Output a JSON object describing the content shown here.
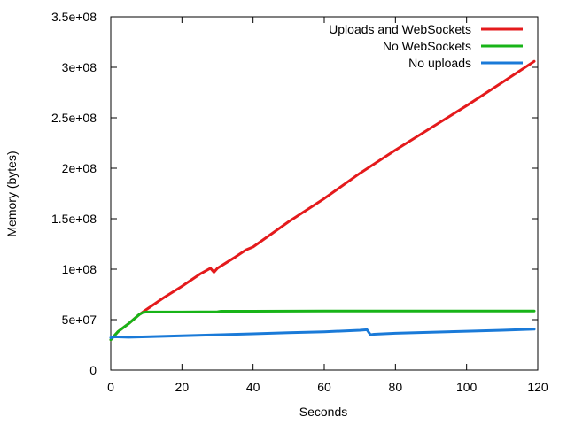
{
  "chart_data": {
    "type": "line",
    "title": "",
    "xlabel": "Seconds",
    "ylabel": "Memory (bytes)",
    "xlim": [
      0,
      120
    ],
    "ylim": [
      0,
      350000000
    ],
    "x_ticks": [
      0,
      20,
      40,
      60,
      80,
      100,
      120
    ],
    "x_tick_labels": [
      "0",
      "20",
      "40",
      "60",
      "80",
      "100",
      "120"
    ],
    "y_ticks": [
      0,
      50000000,
      100000000,
      150000000,
      200000000,
      250000000,
      300000000,
      350000000
    ],
    "y_tick_labels": [
      "0",
      "5e+07",
      "1e+08",
      "1.5e+08",
      "2e+08",
      "2.5e+08",
      "3e+08",
      "3.5e+08"
    ],
    "grid": false,
    "legend_position": "top-right",
    "series": [
      {
        "name": "Uploads and WebSockets",
        "color": "#e41a1c",
        "x": [
          0,
          2,
          5,
          8,
          10,
          15,
          20,
          25,
          28,
          29,
          30,
          35,
          38,
          40,
          50,
          60,
          70,
          80,
          90,
          100,
          110,
          119
        ],
        "y": [
          30000000,
          38000000,
          46000000,
          55000000,
          60000000,
          72000000,
          83000000,
          95000000,
          101000000,
          97000000,
          101000000,
          112000000,
          119000000,
          122000000,
          147000000,
          170000000,
          195000000,
          218000000,
          240000000,
          262000000,
          285000000,
          306000000
        ]
      },
      {
        "name": "No WebSockets",
        "color": "#18b418",
        "x": [
          0,
          2,
          5,
          8,
          9,
          10,
          20,
          30,
          31,
          40,
          60,
          80,
          100,
          119
        ],
        "y": [
          30000000,
          38000000,
          46000000,
          55000000,
          57000000,
          57500000,
          57500000,
          57800000,
          58300000,
          58300000,
          58500000,
          58500000,
          58500000,
          58500000
        ]
      },
      {
        "name": "No uploads",
        "color": "#1a7ad8",
        "x": [
          0,
          1,
          5,
          10,
          20,
          30,
          40,
          50,
          60,
          70,
          72,
          73,
          74,
          80,
          90,
          100,
          110,
          119
        ],
        "y": [
          32000000,
          33000000,
          32500000,
          33000000,
          34000000,
          35000000,
          36000000,
          37000000,
          38000000,
          39500000,
          40000000,
          35000000,
          35500000,
          36500000,
          37500000,
          38500000,
          39500000,
          40500000
        ]
      }
    ]
  }
}
